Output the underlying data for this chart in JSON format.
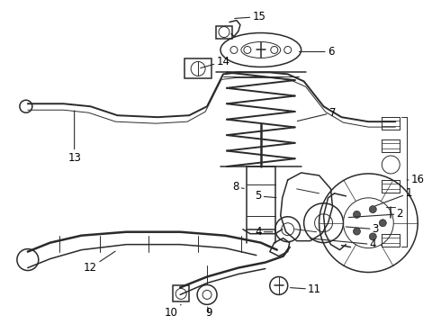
{
  "background_color": "#ffffff",
  "line_color": "#2a2a2a",
  "label_color": "#000000",
  "figsize": [
    4.9,
    3.6
  ],
  "dpi": 100,
  "lw_main": 1.1,
  "lw_thin": 0.7,
  "lw_thick": 1.8
}
